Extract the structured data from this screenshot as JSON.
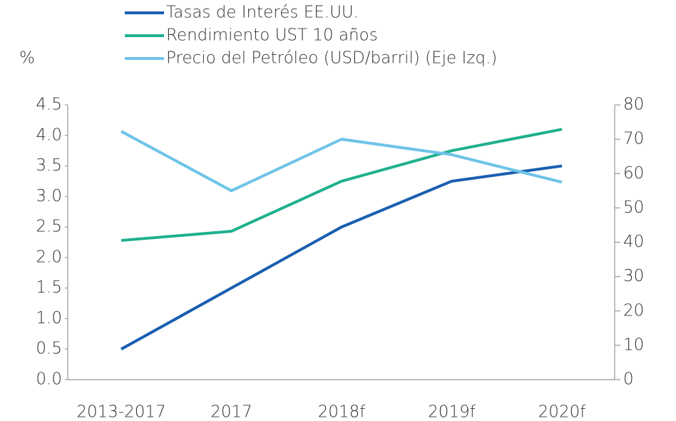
{
  "chart_data": {
    "type": "line",
    "ylabel": "%",
    "categories": [
      "2013-2017",
      "2017",
      "2018f",
      "2019f",
      "2020f"
    ],
    "series": [
      {
        "name": "Tasas de Interés EE.UU.",
        "color": "#1a5fb0",
        "values": [
          0.5,
          1.5,
          2.5,
          3.25,
          3.5
        ]
      },
      {
        "name": "Rendimiento UST 10 años",
        "color": "#1fb08e",
        "values": [
          2.28,
          2.43,
          3.25,
          3.75,
          4.1
        ]
      },
      {
        "name": "Precio del Petróleo (USD/barril) (Eje Izq.)",
        "color": "#6ec3e8",
        "values": [
          72.3,
          55,
          70,
          65.5,
          57.5
        ],
        "axis": "y2"
      }
    ],
    "ylim": [
      0,
      4.5
    ],
    "yticks": [
      {
        "value": 0,
        "label": "0.0"
      },
      0.5,
      {
        "value": 1,
        "label": "1.0"
      },
      1.5,
      {
        "value": 2,
        "label": "2.0"
      },
      2.5,
      {
        "value": 3,
        "label": "3.0"
      },
      3.5,
      {
        "value": 4,
        "label": "4.0"
      },
      4.5
    ],
    "y2lim": [
      0,
      80
    ],
    "y2ticks": [
      0,
      10,
      20,
      30,
      40,
      50,
      60,
      70,
      80
    ],
    "grid": false,
    "legend": "top"
  }
}
